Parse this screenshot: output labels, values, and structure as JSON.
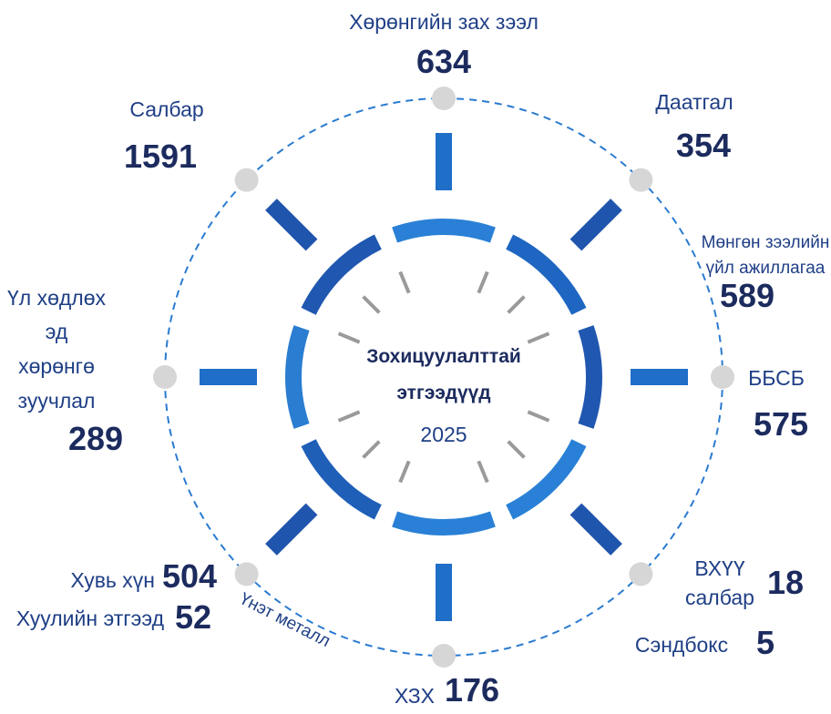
{
  "center": {
    "title_lines": [
      "Зохицуулалттай",
      "этгээдүүд"
    ],
    "year": "2025"
  },
  "items": [
    {
      "label": "Хөрөнгийн зах зээл",
      "value": "634"
    },
    {
      "label": "Даатгал",
      "value": "354"
    },
    {
      "label_lines": [
        "Мөнгөн зээлийн",
        "үйл ажиллагаа"
      ],
      "value": "589"
    },
    {
      "label": "ББСБ",
      "value": "575"
    },
    {
      "entries": [
        {
          "label_lines": [
            "ВХҮҮ",
            "салбар"
          ],
          "value": "18"
        },
        {
          "label": "Сэндбокс",
          "value": "5"
        }
      ]
    },
    {
      "label": "ХЗХ",
      "value": "176"
    },
    {
      "entries": [
        {
          "label": "Хувь хүн",
          "value": "504"
        },
        {
          "label": "Хуулийн этгээд",
          "value": "52"
        }
      ],
      "arc_label": "Үнэт металл"
    },
    {
      "label_lines": [
        "Үл хөдлөх",
        "эд",
        "хөрөнгө",
        "зуучлал"
      ],
      "value": "289"
    },
    {
      "label": "Салбар",
      "value": "1591"
    }
  ]
}
